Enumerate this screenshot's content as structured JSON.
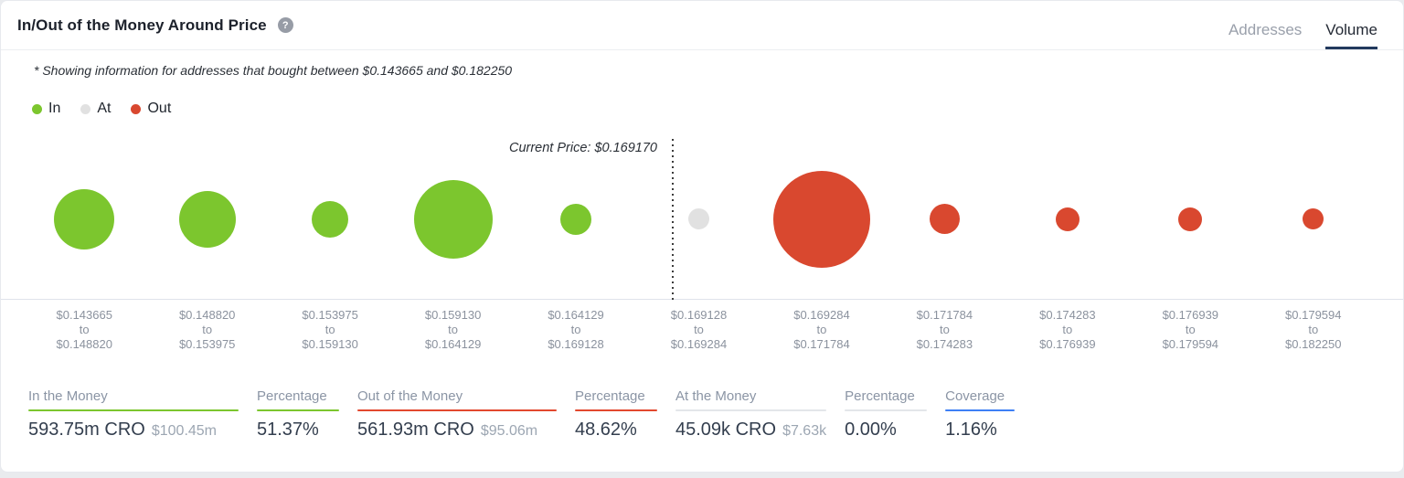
{
  "header": {
    "title": "In/Out of the Money Around Price",
    "help_glyph": "?",
    "tabs": [
      {
        "label": "Addresses",
        "active": false
      },
      {
        "label": "Volume",
        "active": true
      }
    ]
  },
  "subtitle": "* Showing information for addresses that bought between $0.143665 and $0.182250",
  "legend": [
    {
      "label": "In",
      "color": "#7cc62e"
    },
    {
      "label": "At",
      "color": "#e1e1e1"
    },
    {
      "label": "Out",
      "color": "#d9482f"
    }
  ],
  "chart_data": {
    "type": "bubble",
    "title": "In/Out of the Money Around Price",
    "current_price_label": "Current Price: $0.169170",
    "current_price": 0.16917,
    "separator_label": "to",
    "colors": {
      "in": "#7cc62e",
      "at": "#e1e1e1",
      "out": "#d9482f"
    },
    "bubbles": [
      {
        "from": "$0.143665",
        "to": "$0.148820",
        "status": "in",
        "size": 66
      },
      {
        "from": "$0.148820",
        "to": "$0.153975",
        "status": "in",
        "size": 62
      },
      {
        "from": "$0.153975",
        "to": "$0.159130",
        "status": "in",
        "size": 40
      },
      {
        "from": "$0.159130",
        "to": "$0.164129",
        "status": "in",
        "size": 86
      },
      {
        "from": "$0.164129",
        "to": "$0.169128",
        "status": "in",
        "size": 34
      },
      {
        "from": "$0.169128",
        "to": "$0.169284",
        "status": "at",
        "size": 23
      },
      {
        "from": "$0.169284",
        "to": "$0.171784",
        "status": "out",
        "size": 106
      },
      {
        "from": "$0.171784",
        "to": "$0.174283",
        "status": "out",
        "size": 33
      },
      {
        "from": "$0.174283",
        "to": "$0.176939",
        "status": "out",
        "size": 26
      },
      {
        "from": "$0.176939",
        "to": "$0.179594",
        "status": "out",
        "size": 26
      },
      {
        "from": "$0.179594",
        "to": "$0.182250",
        "status": "out",
        "size": 23
      }
    ]
  },
  "stats": [
    {
      "label": "In the Money",
      "value": "593.75m CRO",
      "secondary": "$100.45m",
      "underline": "#7cc62e",
      "min_width": 230
    },
    {
      "label": "Percentage",
      "value": "51.37%",
      "secondary": "",
      "underline": "#7cc62e",
      "min_width": 90
    },
    {
      "label": "Out of the Money",
      "value": "561.93m CRO",
      "secondary": "$95.06m",
      "underline": "#e2482e",
      "min_width": 218
    },
    {
      "label": "Percentage",
      "value": "48.62%",
      "secondary": "",
      "underline": "#e2482e",
      "min_width": 90
    },
    {
      "label": "At the Money",
      "value": "45.09k CRO",
      "secondary": "$7.63k",
      "underline": "#e3e6ea",
      "min_width": 165
    },
    {
      "label": "Percentage",
      "value": "0.00%",
      "secondary": "",
      "underline": "#e3e6ea",
      "min_width": 90
    },
    {
      "label": "Coverage",
      "value": "1.16%",
      "secondary": "",
      "underline": "#3d7ff5",
      "min_width": 76
    }
  ]
}
